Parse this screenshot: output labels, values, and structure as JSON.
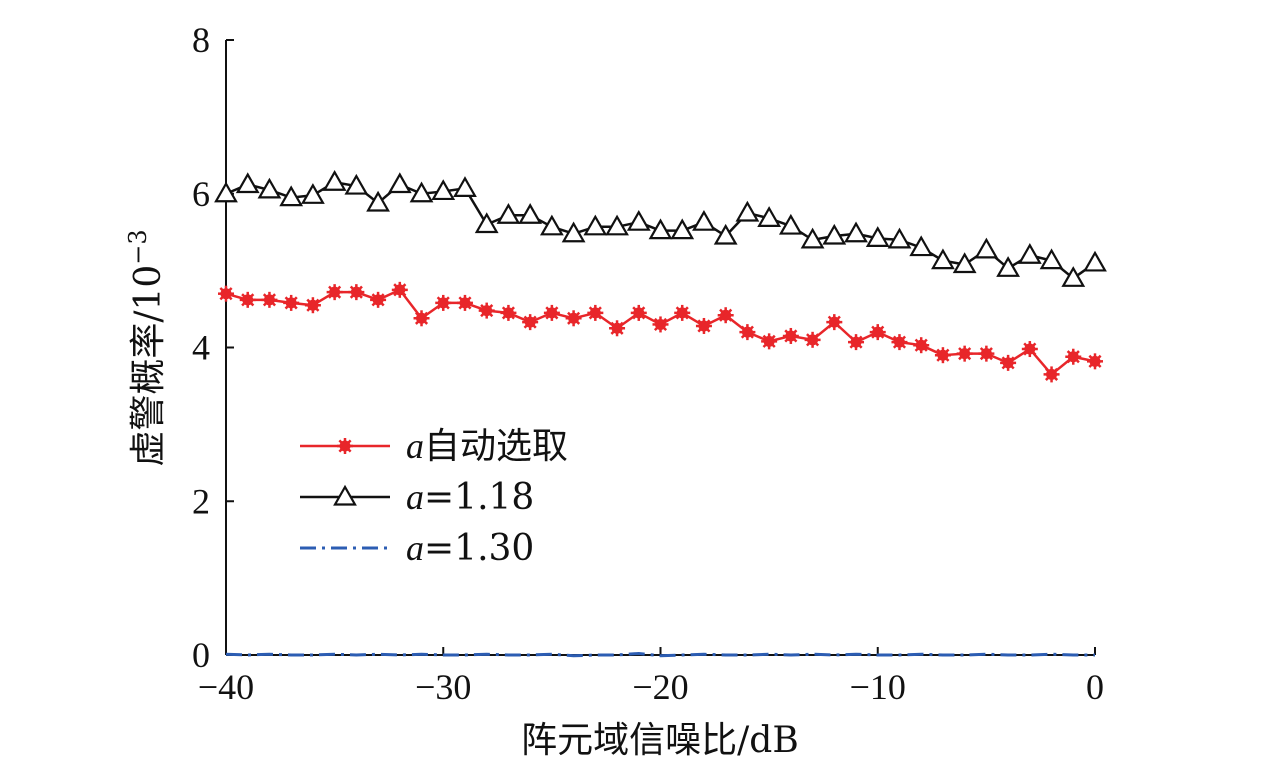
{
  "chart_data": {
    "type": "line",
    "xlabel": "阵元域信噪比/dB",
    "ylabel": "虚警概率/10",
    "ylabel_exponent": "−3",
    "xlim": [
      -40,
      0
    ],
    "ylim": [
      0,
      8
    ],
    "x_ticks": [
      -40,
      -30,
      -20,
      -10,
      0
    ],
    "x_tick_labels": [
      "−40",
      "−30",
      "−20",
      "−10",
      "0"
    ],
    "y_ticks": [
      0,
      2,
      4,
      6,
      8
    ],
    "y_tick_labels": [
      "0",
      "2",
      "4",
      "6",
      "8"
    ],
    "grid": false,
    "legend_position": "center-left",
    "x": [
      -40,
      -39,
      -38,
      -37,
      -36,
      -35,
      -34,
      -33,
      -32,
      -31,
      -30,
      -29,
      -28,
      -27,
      -26,
      -25,
      -24,
      -23,
      -22,
      -21,
      -20,
      -19,
      -18,
      -17,
      -16,
      -15,
      -14,
      -13,
      -12,
      -11,
      -10,
      -9,
      -8,
      -7,
      -6,
      -5,
      -4,
      -3,
      -2,
      -1,
      0
    ],
    "series": [
      {
        "name_var": "a",
        "name_rest": "自动选取",
        "color": "#e8262a",
        "marker": "asterisk",
        "line_style": "solid",
        "values": [
          4.7,
          4.62,
          4.62,
          4.58,
          4.55,
          4.72,
          4.72,
          4.62,
          4.75,
          4.38,
          4.58,
          4.58,
          4.48,
          4.45,
          4.33,
          4.45,
          4.38,
          4.45,
          4.25,
          4.45,
          4.3,
          4.45,
          4.28,
          4.42,
          4.2,
          4.08,
          4.15,
          4.1,
          4.33,
          4.07,
          4.2,
          4.07,
          4.03,
          3.9,
          3.92,
          3.92,
          3.8,
          3.98,
          3.65,
          3.88,
          3.82
        ]
      },
      {
        "name_var": "a",
        "name_rest": "=1.18",
        "color": "#111111",
        "marker": "triangle",
        "line_style": "solid",
        "values": [
          6.0,
          6.12,
          6.05,
          5.95,
          5.98,
          6.15,
          6.1,
          5.88,
          6.12,
          6.0,
          6.03,
          6.07,
          5.6,
          5.72,
          5.72,
          5.57,
          5.48,
          5.57,
          5.57,
          5.63,
          5.52,
          5.52,
          5.63,
          5.45,
          5.75,
          5.68,
          5.58,
          5.4,
          5.45,
          5.48,
          5.42,
          5.4,
          5.3,
          5.13,
          5.08,
          5.27,
          5.03,
          5.2,
          5.13,
          4.9,
          5.1
        ]
      },
      {
        "name_var": "a",
        "name_rest": "=1.30",
        "color": "#2c5db3",
        "marker": "none",
        "line_style": "dash-dot",
        "values": [
          0.01,
          0.0,
          0.01,
          0.0,
          0.0,
          0.01,
          0.0,
          0.01,
          0.0,
          0.01,
          0.0,
          0.0,
          0.01,
          0.0,
          0.0,
          0.01,
          -0.01,
          0.0,
          0.0,
          0.02,
          -0.01,
          0.0,
          0.01,
          0.0,
          0.0,
          0.01,
          0.0,
          0.01,
          0.0,
          0.01,
          0.0,
          0.0,
          0.01,
          0.0,
          0.0,
          0.01,
          0.0,
          0.0,
          0.01,
          0.0,
          0.0
        ]
      }
    ]
  }
}
